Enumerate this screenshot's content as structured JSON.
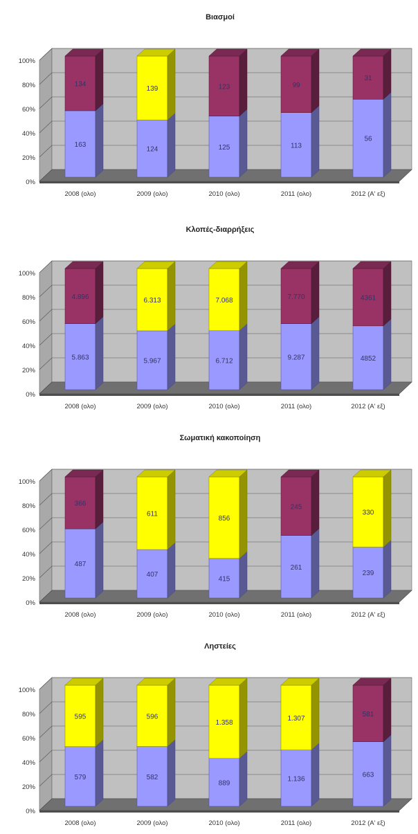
{
  "colors": {
    "back_wall": "#c0c0c0",
    "left_wall": "#a9a9a9",
    "floor": "#707070",
    "grid": "#555555",
    "bottom_series": "#9999ff",
    "maroon": "#993366",
    "yellow": "#ffff00"
  },
  "chart_data": [
    {
      "type": "bar",
      "stacked": "percent",
      "style": "3d",
      "title": "Βιασμοί",
      "categories": [
        "2008 (ολο)",
        "2009 (ολο)",
        "2010 (ολο)",
        "2011 (ολο)",
        "2012 (Α' εξ)"
      ],
      "yticks": [
        "0%",
        "20%",
        "40%",
        "60%",
        "80%",
        "100%"
      ],
      "ylim": [
        0,
        100
      ],
      "grid": true,
      "series": [
        {
          "values": [
            163,
            124,
            125,
            113,
            56
          ],
          "labels": [
            "163",
            "124",
            "125",
            "113",
            "56"
          ],
          "colors": [
            "#9999ff",
            "#9999ff",
            "#9999ff",
            "#9999ff",
            "#9999ff"
          ]
        },
        {
          "values": [
            134,
            139,
            123,
            99,
            31
          ],
          "labels": [
            "134",
            "139",
            "123",
            "99",
            "31"
          ],
          "colors": [
            "#993366",
            "#ffff00",
            "#993366",
            "#993366",
            "#993366"
          ]
        }
      ]
    },
    {
      "type": "bar",
      "stacked": "percent",
      "style": "3d",
      "title": "Κλοπές-διαρρήξεις",
      "categories": [
        "2008 (ολο)",
        "2009 (ολο)",
        "2010 (ολο)",
        "2011 (ολο)",
        "2012 (Α' εξ)"
      ],
      "yticks": [
        "0%",
        "20%",
        "40%",
        "60%",
        "80%",
        "100%"
      ],
      "ylim": [
        0,
        100
      ],
      "grid": true,
      "series": [
        {
          "values": [
            5863,
            5967,
            6712,
            9287,
            4852
          ],
          "labels": [
            "5.863",
            "5.967",
            "6.712",
            "9.287",
            "4852"
          ],
          "colors": [
            "#9999ff",
            "#9999ff",
            "#9999ff",
            "#9999ff",
            "#9999ff"
          ]
        },
        {
          "values": [
            4896,
            6313,
            7068,
            7770,
            4361
          ],
          "labels": [
            "4.896",
            "6.313",
            "7.068",
            "7.770",
            "4361"
          ],
          "colors": [
            "#993366",
            "#ffff00",
            "#ffff00",
            "#993366",
            "#993366"
          ]
        }
      ]
    },
    {
      "type": "bar",
      "stacked": "percent",
      "style": "3d",
      "title": "Σωματική κακοποίηση",
      "categories": [
        "2008 (ολο)",
        "2009 (ολο)",
        "2010 (ολο)",
        "2011 (ολο)",
        "2012 (Α' εξ)"
      ],
      "yticks": [
        "0%",
        "20%",
        "40%",
        "60%",
        "80%",
        "100%"
      ],
      "ylim": [
        0,
        100
      ],
      "grid": true,
      "series": [
        {
          "values": [
            487,
            407,
            415,
            261,
            239
          ],
          "labels": [
            "487",
            "407",
            "415",
            "261",
            "239"
          ],
          "colors": [
            "#9999ff",
            "#9999ff",
            "#9999ff",
            "#9999ff",
            "#9999ff"
          ]
        },
        {
          "values": [
            366,
            611,
            856,
            245,
            330
          ],
          "labels": [
            "366",
            "611",
            "856",
            "245",
            "330"
          ],
          "colors": [
            "#993366",
            "#ffff00",
            "#ffff00",
            "#993366",
            "#ffff00"
          ]
        }
      ]
    },
    {
      "type": "bar",
      "stacked": "percent",
      "style": "3d",
      "title": "Ληστείες",
      "categories": [
        "2008 (ολο)",
        "2009 (ολο)",
        "2010 (ολο)",
        "2011 (ολο)",
        "2012 (Α' εξ)"
      ],
      "yticks": [
        "0%",
        "20%",
        "40%",
        "60%",
        "80%",
        "100%"
      ],
      "ylim": [
        0,
        100
      ],
      "grid": true,
      "series": [
        {
          "values": [
            579,
            582,
            889,
            1136,
            663
          ],
          "labels": [
            "579",
            "582",
            "889",
            "1.136",
            "663"
          ],
          "colors": [
            "#9999ff",
            "#9999ff",
            "#9999ff",
            "#9999ff",
            "#9999ff"
          ]
        },
        {
          "values": [
            595,
            596,
            1358,
            1307,
            581
          ],
          "labels": [
            "595",
            "596",
            "1.358",
            "1.307",
            "581"
          ],
          "colors": [
            "#ffff00",
            "#ffff00",
            "#ffff00",
            "#ffff00",
            "#993366"
          ]
        }
      ]
    }
  ]
}
